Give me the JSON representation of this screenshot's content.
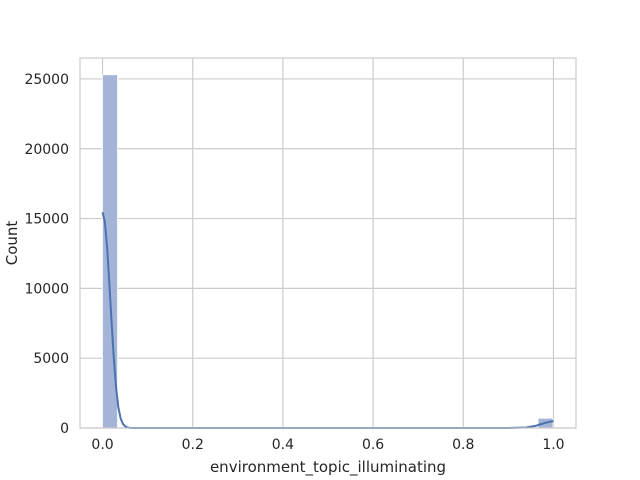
{
  "chart_data": {
    "type": "histogram",
    "title": "",
    "xlabel": "environment_topic_illuminating",
    "ylabel": "Count",
    "xlim": [
      -0.05,
      1.05
    ],
    "ylim": [
      0,
      26500
    ],
    "xticks": [
      0.0,
      0.2,
      0.4,
      0.6,
      0.8,
      1.0
    ],
    "xtick_labels": [
      "0.0",
      "0.2",
      "0.4",
      "0.6",
      "0.8",
      "1.0"
    ],
    "yticks": [
      0,
      5000,
      10000,
      15000,
      20000,
      25000
    ],
    "ytick_labels": [
      "0",
      "5000",
      "10000",
      "15000",
      "20000",
      "25000"
    ],
    "grid": true,
    "bins": {
      "width": 0.0333,
      "edges_start": 0.0,
      "counts": [
        25300,
        0,
        0,
        0,
        0,
        0,
        0,
        0,
        0,
        0,
        0,
        0,
        0,
        0,
        0,
        0,
        0,
        0,
        0,
        0,
        0,
        0,
        0,
        0,
        0,
        0,
        0,
        0,
        0,
        700
      ]
    },
    "kde": {
      "x": [
        0.0,
        0.005,
        0.01,
        0.015,
        0.02,
        0.025,
        0.03,
        0.035,
        0.04,
        0.045,
        0.05,
        0.055,
        0.06,
        0.07,
        0.08,
        0.1,
        0.2,
        0.4,
        0.6,
        0.8,
        0.9,
        0.94,
        0.96,
        0.97,
        0.98,
        0.99,
        1.0
      ],
      "y": [
        15450,
        14800,
        13000,
        10400,
        7600,
        5000,
        2900,
        1500,
        700,
        300,
        120,
        40,
        10,
        0,
        0,
        0,
        0,
        0,
        0,
        0,
        0,
        40,
        150,
        250,
        350,
        440,
        490
      ]
    },
    "colors": {
      "bar_fill": "#a3b4d6",
      "kde_line": "#4c72b0",
      "grid": "#cccccc",
      "spine": "#cccccc"
    }
  }
}
